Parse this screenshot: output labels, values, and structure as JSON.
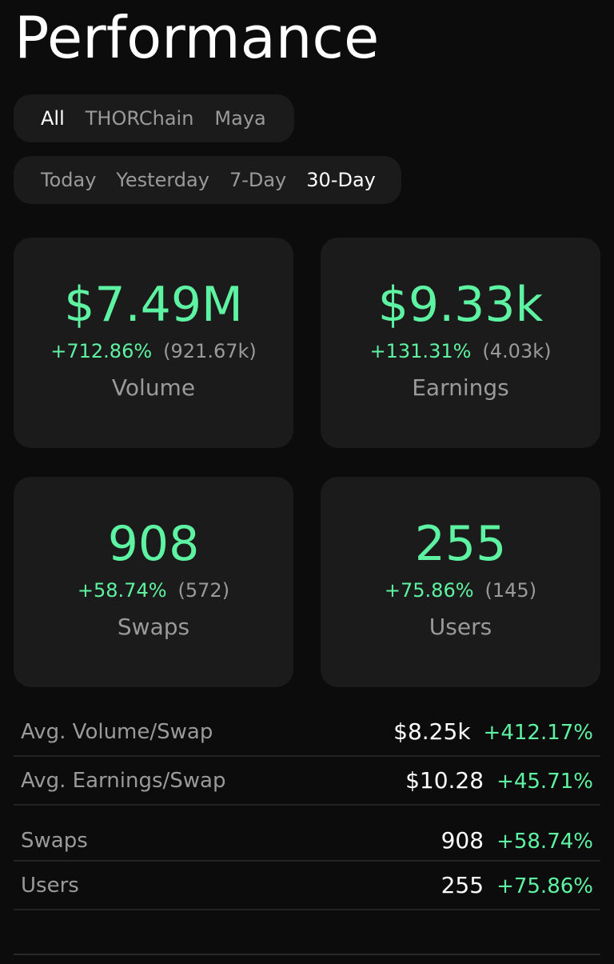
{
  "header": {
    "title": "Performance"
  },
  "chain_filter": {
    "options": [
      "All",
      "THORChain",
      "Maya"
    ],
    "selected": "All"
  },
  "period_filter": {
    "options": [
      "Today",
      "Yesterday",
      "7-Day",
      "30-Day"
    ],
    "selected": "30-Day"
  },
  "cards": {
    "volume": {
      "value": "$7.49M",
      "change_pct": "+712.86%",
      "previous": "(921.67k)",
      "label": "Volume"
    },
    "earnings": {
      "value": "$9.33k",
      "change_pct": "+131.31%",
      "previous": "(4.03k)",
      "label": "Earnings"
    },
    "swaps": {
      "value": "908",
      "change_pct": "+58.74%",
      "previous": "(572)",
      "label": "Swaps"
    },
    "users": {
      "value": "255",
      "change_pct": "+75.86%",
      "previous": "(145)",
      "label": "Users"
    }
  },
  "stats": [
    {
      "label": "Avg. Volume/Swap",
      "value": "$8.25k",
      "change_pct": "+412.17%"
    },
    {
      "label": "Avg. Earnings/Swap",
      "value": "$10.28",
      "change_pct": "+45.71%"
    },
    {
      "label": "Swaps",
      "value": "908",
      "change_pct": "+58.74%"
    },
    {
      "label": "Users",
      "value": "255",
      "change_pct": "+75.86%"
    }
  ],
  "colors": {
    "background": "#0c0c0c",
    "card": "#1b1b1b",
    "accent_green": "#5ef3a2",
    "muted_text": "#9a9a9a",
    "primary_text": "#ffffff"
  }
}
